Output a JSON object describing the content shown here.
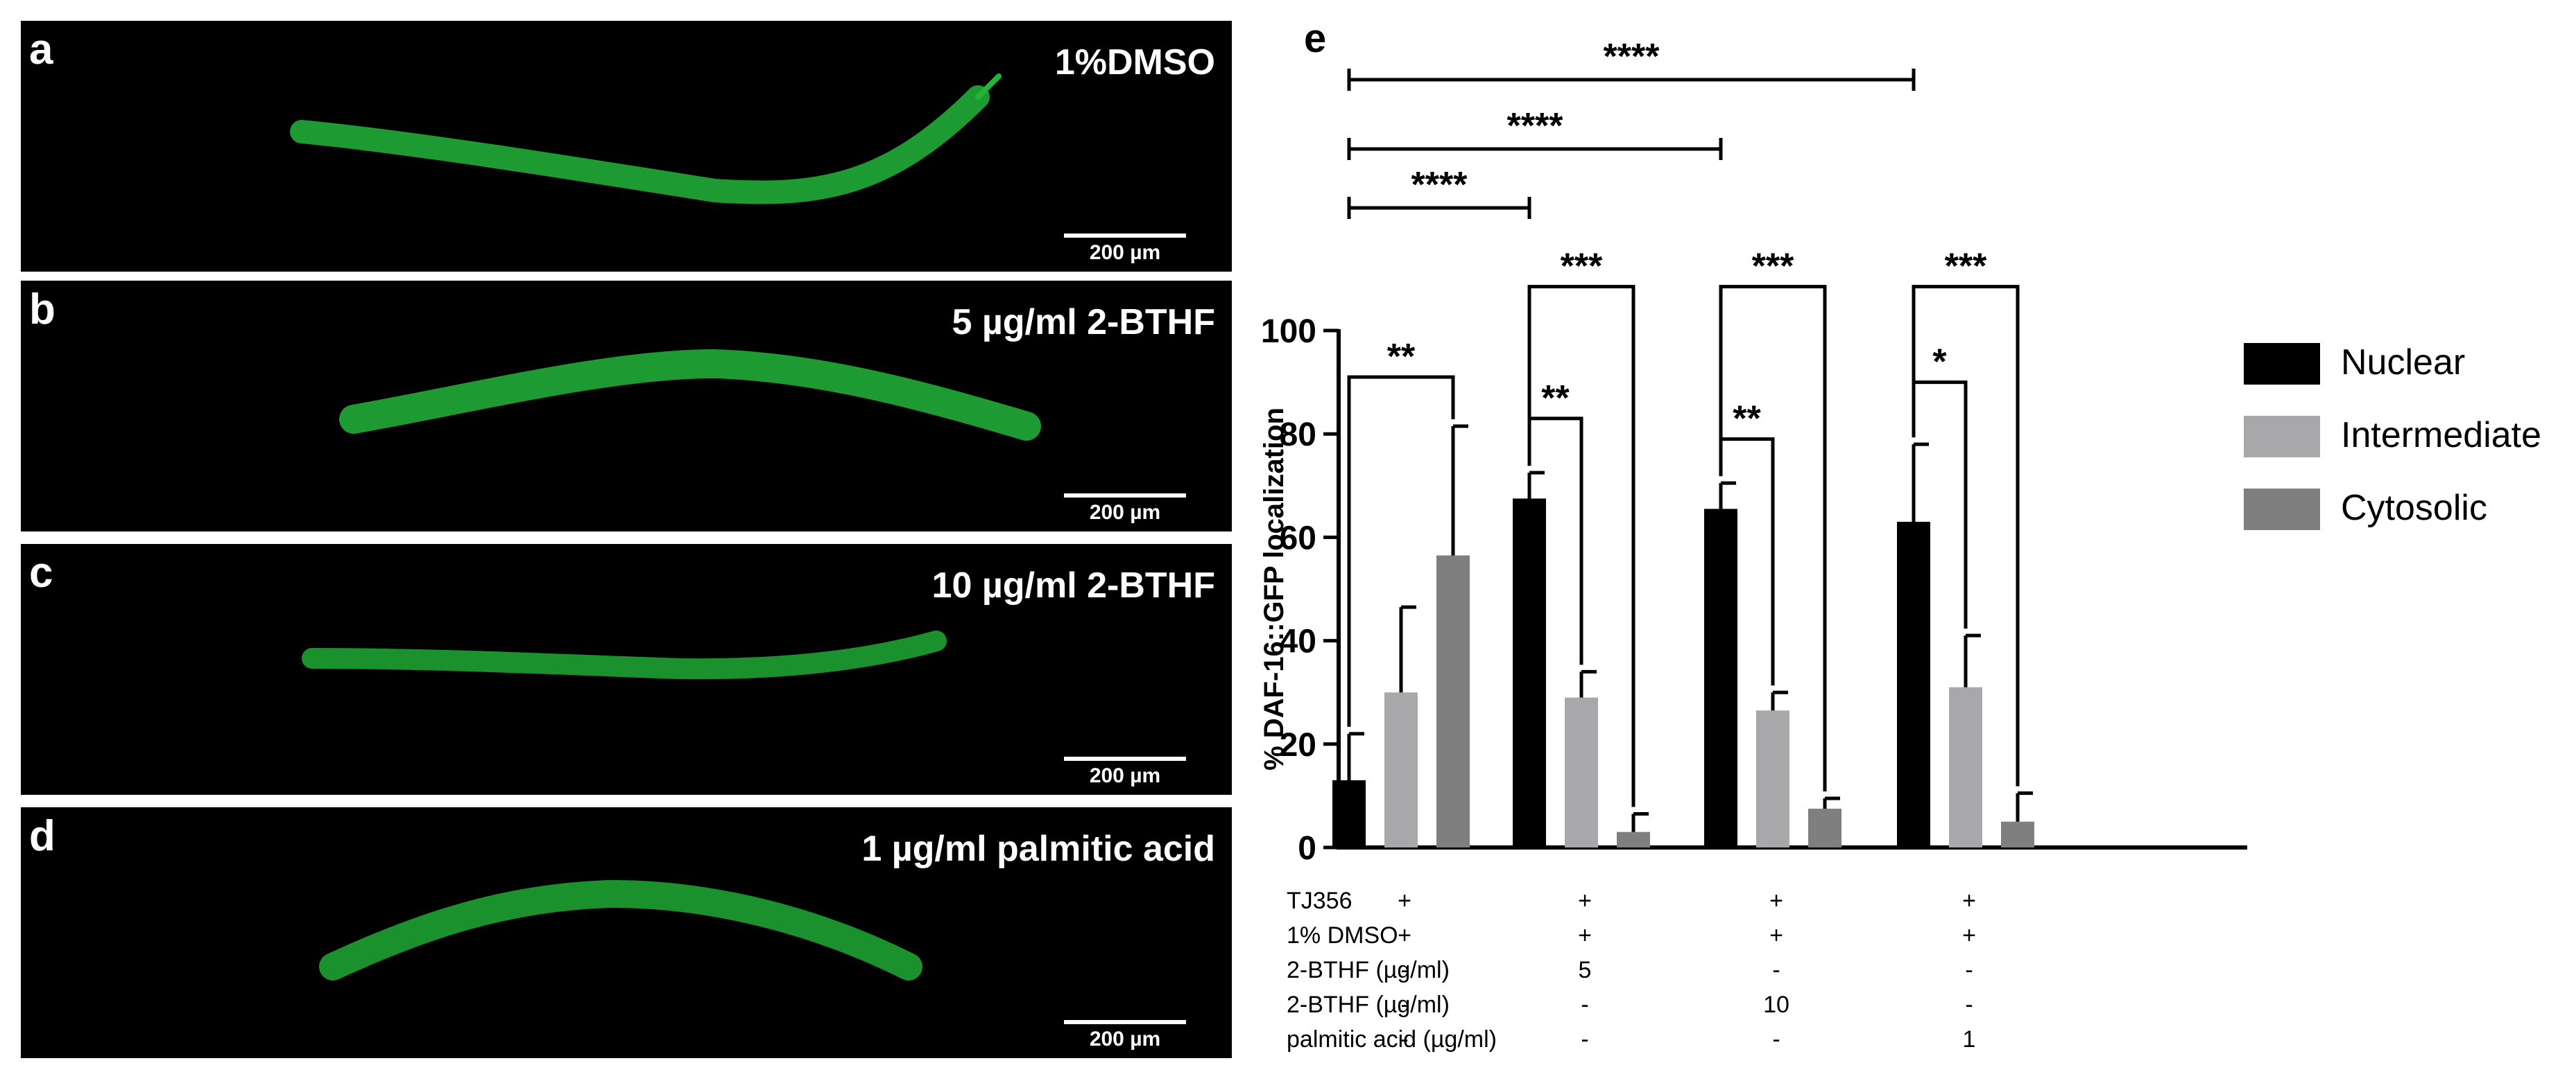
{
  "panels": [
    {
      "letter": "a",
      "label": "1%DMSO",
      "scale_label": "200 µm"
    },
    {
      "letter": "b",
      "label": "5 µg/ml 2-BTHF",
      "scale_label": "200 µm"
    },
    {
      "letter": "c",
      "label": "10 µg/ml 2-BTHF",
      "scale_label": "200 µm"
    },
    {
      "letter": "d",
      "label": "1 µg/ml palmitic acid",
      "scale_label": "200 µm"
    }
  ],
  "colors": {
    "worm": "#22b53a",
    "nuclear": "#000000",
    "intermediate": "#a8a8aa",
    "cytosolic": "#7f7f7f"
  },
  "chart_data": {
    "type": "bar",
    "panel_letter": "e",
    "ylabel": "% DAF-16::GFP localization",
    "ylim": [
      0,
      100
    ],
    "yticks": [
      0,
      20,
      40,
      60,
      80,
      100
    ],
    "legend_position": "right",
    "series": [
      {
        "name": "Nuclear",
        "color": "#000000",
        "values": [
          13,
          67.5,
          65.5,
          63
        ],
        "errors": [
          9,
          5,
          5,
          15
        ]
      },
      {
        "name": "Intermediate",
        "color": "#a8a8aa",
        "values": [
          30,
          29,
          26.5,
          31
        ],
        "errors": [
          16.5,
          5,
          3.5,
          10
        ]
      },
      {
        "name": "Cytosolic",
        "color": "#7f7f7f",
        "values": [
          56.5,
          3,
          7.5,
          5
        ],
        "errors": [
          25,
          3.5,
          2,
          5.5
        ]
      }
    ],
    "within_group_significance": [
      {
        "group": 0,
        "a": "Nuclear",
        "b": "Cytosolic",
        "stars": "**"
      },
      {
        "group": 1,
        "a": "Nuclear",
        "b": "Cytosolic",
        "stars": "***"
      },
      {
        "group": 1,
        "a": "Nuclear",
        "b": "Intermediate",
        "stars": "**"
      },
      {
        "group": 2,
        "a": "Nuclear",
        "b": "Cytosolic",
        "stars": "***"
      },
      {
        "group": 2,
        "a": "Nuclear",
        "b": "Intermediate",
        "stars": "**"
      },
      {
        "group": 3,
        "a": "Nuclear",
        "b": "Cytosolic",
        "stars": "***"
      },
      {
        "group": 3,
        "a": "Nuclear",
        "b": "Intermediate",
        "stars": "*"
      }
    ],
    "between_group_significance": [
      {
        "from": 0,
        "to": 1,
        "stars": "****"
      },
      {
        "from": 0,
        "to": 2,
        "stars": "****"
      },
      {
        "from": 0,
        "to": 3,
        "stars": "****"
      }
    ],
    "conditions": [
      {
        "label": "TJ356",
        "values": [
          "+",
          "+",
          "+",
          "+"
        ]
      },
      {
        "label": "1% DMSO",
        "values": [
          "+",
          "+",
          "+",
          "+"
        ]
      },
      {
        "label": "2-BTHF (µg/ml)",
        "values": [
          "-",
          "5",
          "-",
          "-"
        ]
      },
      {
        "label": "2-BTHF (µg/ml)",
        "values": [
          "-",
          "-",
          "10",
          "-"
        ]
      },
      {
        "label": "palmitic acid (µg/ml)",
        "values": [
          "-",
          "-",
          "-",
          "1"
        ]
      }
    ]
  }
}
